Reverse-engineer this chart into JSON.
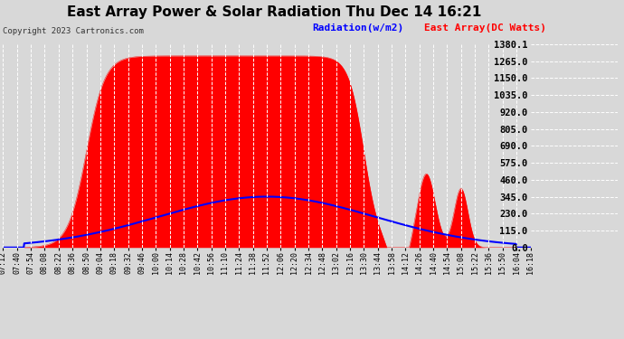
{
  "title": "East Array Power & Solar Radiation Thu Dec 14 16:21",
  "copyright": "Copyright 2023 Cartronics.com",
  "legend_radiation": "Radiation(w/m2)",
  "legend_array": "East Array(DC Watts)",
  "y_ticks": [
    0.0,
    115.0,
    230.0,
    345.0,
    460.0,
    575.0,
    690.0,
    805.0,
    920.0,
    1035.0,
    1150.0,
    1265.0,
    1380.1
  ],
  "y_max": 1380.1,
  "y_min": 0.0,
  "x_labels": [
    "07:12",
    "07:40",
    "07:54",
    "08:08",
    "08:22",
    "08:36",
    "08:50",
    "09:04",
    "09:18",
    "09:32",
    "09:46",
    "10:00",
    "10:14",
    "10:28",
    "10:42",
    "10:56",
    "11:10",
    "11:24",
    "11:38",
    "11:52",
    "12:06",
    "12:20",
    "12:34",
    "12:48",
    "13:02",
    "13:16",
    "13:30",
    "13:44",
    "13:58",
    "14:12",
    "14:26",
    "14:40",
    "14:54",
    "15:08",
    "15:22",
    "15:36",
    "15:50",
    "16:04",
    "16:18"
  ],
  "bg_color": "#d8d8d8",
  "plot_bg_color": "#d8d8d8",
  "red_fill_color": "#ff0000",
  "blue_line_color": "#0000ff",
  "grid_color": "#ffffff",
  "title_color": "#000000",
  "radiation_color": "#0000ff",
  "array_color": "#ff0000"
}
